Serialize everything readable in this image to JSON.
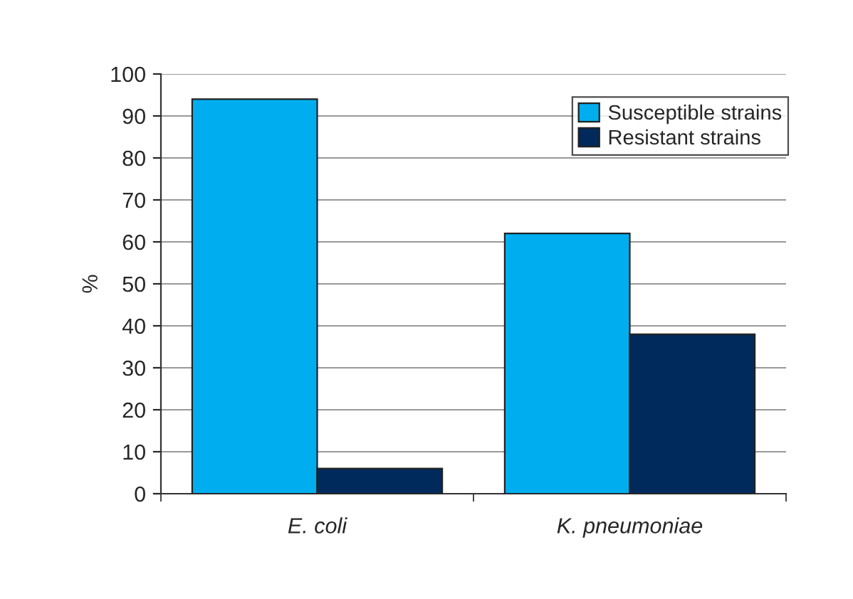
{
  "chart_data": {
    "type": "bar",
    "ylabel": "%",
    "categories": [
      "E. coli",
      "K. pneumoniae"
    ],
    "series": [
      {
        "name": "Susceptible strains",
        "color": "#00aeef",
        "values": [
          94,
          62
        ]
      },
      {
        "name": "Resistant strains",
        "color": "#002a5c",
        "values": [
          6,
          38
        ]
      }
    ],
    "ylim": [
      0,
      100
    ],
    "yticks": [
      0,
      10,
      20,
      30,
      40,
      50,
      60,
      70,
      80,
      90,
      100
    ],
    "grid": "y",
    "legend": "top right"
  }
}
